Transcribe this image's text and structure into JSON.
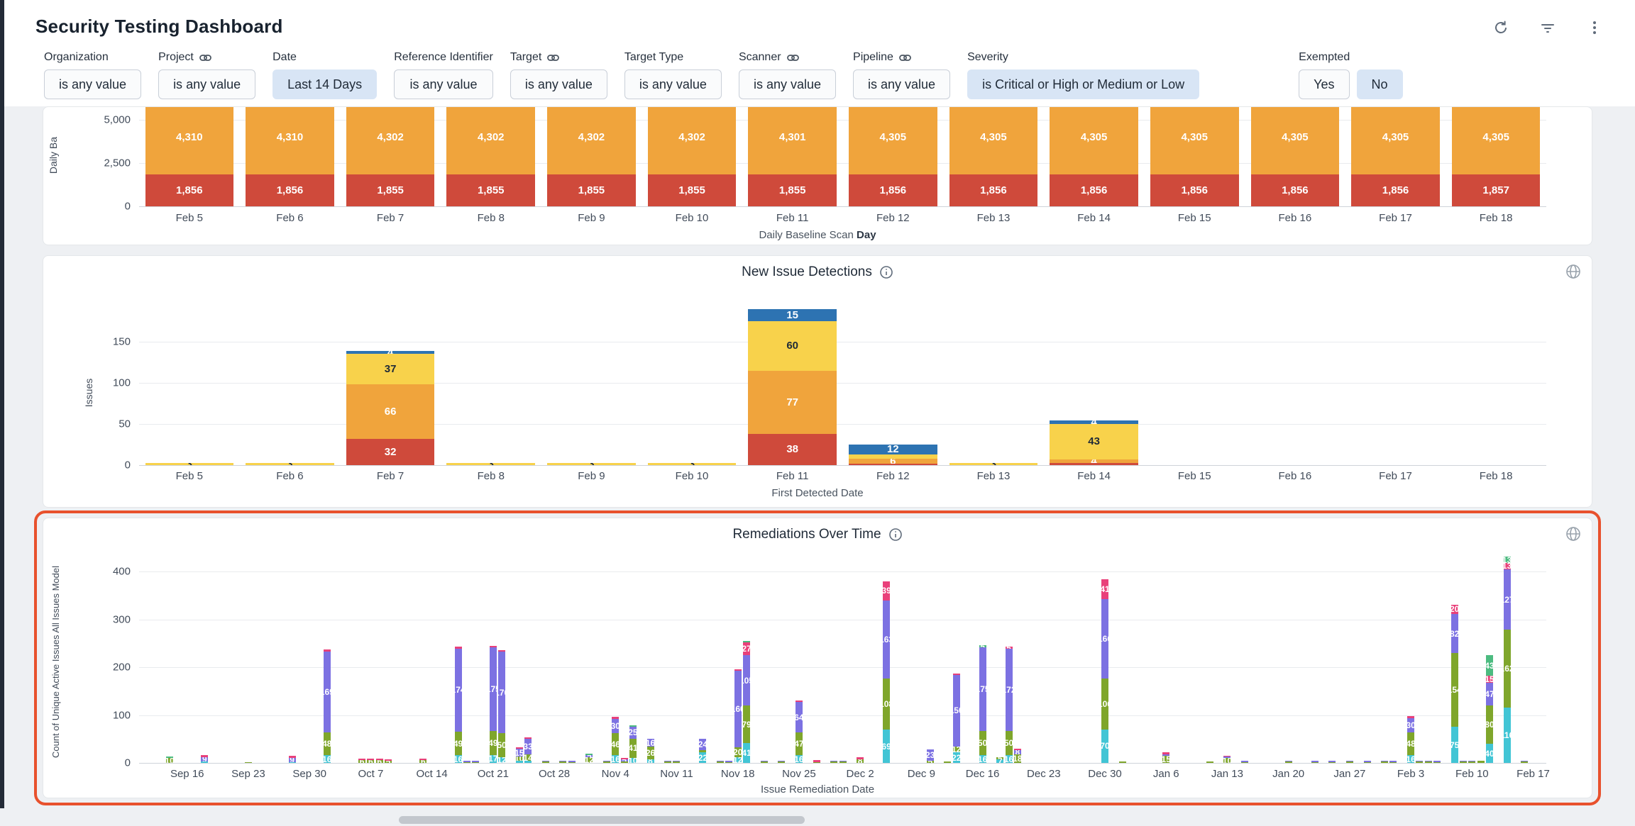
{
  "header": {
    "title": "Security Testing Dashboard",
    "icons": [
      "refresh-icon",
      "filter-icon",
      "kebab-menu-icon"
    ]
  },
  "filters": [
    {
      "label": "Organization",
      "link": false,
      "value": "is any value",
      "active": false
    },
    {
      "label": "Project",
      "link": true,
      "value": "is any value",
      "active": false
    },
    {
      "label": "Date",
      "link": false,
      "value": "Last 14 Days",
      "active": true
    },
    {
      "label": "Reference Identifier",
      "link": false,
      "value": "is any value",
      "active": false
    },
    {
      "label": "Target",
      "link": true,
      "value": "is any value",
      "active": false
    },
    {
      "label": "Target Type",
      "link": false,
      "value": "is any value",
      "active": false
    },
    {
      "label": "Scanner",
      "link": true,
      "value": "is any value",
      "active": false
    },
    {
      "label": "Pipeline",
      "link": true,
      "value": "is any value",
      "active": false
    },
    {
      "label": "Severity",
      "link": false,
      "value": "is Critical or High or Medium or Low",
      "active": true
    }
  ],
  "exempted": {
    "label": "Exempted",
    "options": [
      {
        "value": "Yes",
        "active": false
      },
      {
        "value": "No",
        "active": true
      }
    ]
  },
  "colors": {
    "red": "#cf4a3b",
    "orange": "#f0a43c",
    "yellow": "#f8d24b",
    "blue": "#2d73b2",
    "teal": "#42c5d5",
    "olive": "#7fa62b",
    "purple": "#7c71e2",
    "pink": "#e9407a",
    "emerald": "#4cbb80",
    "highlight": "#e8512d",
    "active_filter_bg": "#d8e5f5"
  },
  "chart_data": [
    {
      "type": "bar",
      "name": "daily-baseline-scan",
      "ylabel": "Daily Ba",
      "y_ticks": [
        "5,000",
        "2,500",
        "0"
      ],
      "categories": [
        "Feb 5",
        "Feb 6",
        "Feb 7",
        "Feb 8",
        "Feb 9",
        "Feb 10",
        "Feb 11",
        "Feb 12",
        "Feb 13",
        "Feb 14",
        "Feb 15",
        "Feb 16",
        "Feb 17",
        "Feb 18"
      ],
      "xlabel_prefix": "Daily Baseline Scan ",
      "xlabel_bold": "Day",
      "series": [
        {
          "name": "orange",
          "color": "orange",
          "values": [
            4310,
            4310,
            4302,
            4302,
            4302,
            4302,
            4301,
            4305,
            4305,
            4305,
            4305,
            4305,
            4305,
            4305
          ],
          "labels": [
            "4,310",
            "4,310",
            "4,302",
            "4,302",
            "4,302",
            "4,302",
            "4,301",
            "4,305",
            "4,305",
            "4,305",
            "4,305",
            "4,305",
            "4,305",
            "4,305"
          ]
        },
        {
          "name": "red",
          "color": "red",
          "values": [
            1856,
            1856,
            1855,
            1855,
            1855,
            1855,
            1855,
            1856,
            1856,
            1856,
            1856,
            1856,
            1856,
            1857
          ],
          "labels": [
            "1,856",
            "1,856",
            "1,855",
            "1,855",
            "1,855",
            "1,855",
            "1,855",
            "1,856",
            "1,856",
            "1,856",
            "1,856",
            "1,856",
            "1,856",
            "1,857"
          ]
        }
      ]
    },
    {
      "type": "bar",
      "name": "new-issue-detections",
      "title": "New Issue Detections",
      "ylabel": "Issues",
      "y_ticks": [
        "150",
        "100",
        "50",
        "0"
      ],
      "categories": [
        "Feb 5",
        "Feb 6",
        "Feb 7",
        "Feb 8",
        "Feb 9",
        "Feb 10",
        "Feb 11",
        "Feb 12",
        "Feb 13",
        "Feb 14",
        "Feb 15",
        "Feb 16",
        "Feb 17",
        "Feb 18"
      ],
      "xlabel": "First Detected Date",
      "series": [
        {
          "name": "critical",
          "color": "red",
          "values": [
            0,
            0,
            32,
            0,
            0,
            0,
            38,
            2,
            0,
            3,
            0,
            0,
            0,
            0
          ],
          "labels": [
            "",
            "",
            "32",
            "",
            "",
            "",
            "38",
            "",
            "",
            "",
            "",
            "",
            "",
            ""
          ]
        },
        {
          "name": "high",
          "color": "orange",
          "values": [
            0,
            0,
            66,
            0,
            0,
            0,
            77,
            6,
            0,
            4,
            0,
            0,
            0,
            0
          ],
          "labels": [
            "",
            "",
            "66",
            "",
            "",
            "",
            "77",
            "6",
            "",
            "4",
            "",
            "",
            "",
            ""
          ]
        },
        {
          "name": "medium",
          "color": "yellow",
          "values": [
            3,
            3,
            37,
            3,
            3,
            3,
            60,
            5,
            3,
            43,
            0,
            0,
            0,
            0
          ],
          "labels": [
            "3",
            "3",
            "37",
            "3",
            "3",
            "3",
            "60",
            "",
            "3",
            "43",
            "",
            "",
            "",
            ""
          ]
        },
        {
          "name": "low",
          "color": "blue",
          "values": [
            0,
            0,
            4,
            0,
            0,
            0,
            15,
            12,
            0,
            4,
            0,
            0,
            0,
            0
          ],
          "labels": [
            "",
            "",
            "4",
            "",
            "",
            "",
            "15",
            "12",
            "",
            "4",
            "",
            "",
            "",
            ""
          ]
        }
      ]
    },
    {
      "type": "bar",
      "name": "remediations-over-time",
      "title": "Remediations Over Time",
      "ylabel": "Count of Unique Active Issues All Issues Model",
      "y_ticks": [
        "400",
        "300",
        "200",
        "100",
        "0"
      ],
      "xlabel": "Issue Remediation Date",
      "x_tick_labels": [
        "Sep 16",
        "Sep 23",
        "Sep 30",
        "Oct 7",
        "Oct 14",
        "Oct 21",
        "Oct 28",
        "Nov 4",
        "Nov 11",
        "Nov 18",
        "Nov 25",
        "Dec 2",
        "Dec 9",
        "Dec 16",
        "Dec 23",
        "Dec 30",
        "Jan 6",
        "Jan 13",
        "Jan 20",
        "Jan 27",
        "Feb 3",
        "Feb 10",
        "Feb 17"
      ],
      "x_tick_days": [
        5,
        12,
        19,
        26,
        33,
        40,
        47,
        54,
        61,
        68,
        75,
        82,
        89,
        96,
        103,
        110,
        117,
        124,
        131,
        138,
        145,
        152,
        159
      ],
      "domain_days": 161,
      "stack_order": [
        "teal",
        "olive",
        "purple",
        "pink",
        "emerald"
      ],
      "bars": [
        {
          "d": 3,
          "s": [
            0,
            10,
            0,
            0,
            3
          ]
        },
        {
          "d": 7,
          "s": [
            3,
            0,
            9,
            4,
            0
          ]
        },
        {
          "d": 12,
          "s": [
            0,
            2,
            0,
            0,
            0
          ]
        },
        {
          "d": 17,
          "s": [
            2,
            0,
            9,
            4,
            0
          ]
        },
        {
          "d": 21,
          "s": [
            16,
            48,
            169,
            4,
            0
          ]
        },
        {
          "d": 25,
          "s": [
            0,
            6,
            0,
            3,
            0
          ]
        },
        {
          "d": 26,
          "s": [
            0,
            6,
            0,
            3,
            0
          ]
        },
        {
          "d": 27,
          "s": [
            0,
            6,
            0,
            3,
            0
          ]
        },
        {
          "d": 28,
          "s": [
            0,
            5,
            0,
            3,
            0
          ]
        },
        {
          "d": 32,
          "s": [
            0,
            6,
            0,
            3,
            0
          ]
        },
        {
          "d": 36,
          "s": [
            16,
            49,
            174,
            4,
            0
          ]
        },
        {
          "d": 37,
          "s": [
            0,
            2,
            3,
            0,
            0
          ]
        },
        {
          "d": 38,
          "s": [
            0,
            2,
            3,
            0,
            0
          ]
        },
        {
          "d": 40,
          "s": [
            17,
            49,
            175,
            3,
            0
          ]
        },
        {
          "d": 41,
          "s": [
            12,
            50,
            170,
            3,
            0
          ]
        },
        {
          "d": 43,
          "s": [
            4,
            10,
            15,
            3,
            0
          ]
        },
        {
          "d": 44,
          "s": [
            4,
            14,
            33,
            3,
            0
          ]
        },
        {
          "d": 46,
          "s": [
            0,
            3,
            2,
            0,
            0
          ]
        },
        {
          "d": 48,
          "s": [
            0,
            3,
            2,
            0,
            0
          ]
        },
        {
          "d": 49,
          "s": [
            0,
            2,
            3,
            0,
            0
          ]
        },
        {
          "d": 51,
          "s": [
            0,
            12,
            5,
            0,
            3
          ]
        },
        {
          "d": 53,
          "s": [
            0,
            3,
            2,
            0,
            0
          ]
        },
        {
          "d": 54,
          "s": [
            16,
            46,
            30,
            4,
            0
          ]
        },
        {
          "d": 55,
          "s": [
            0,
            3,
            5,
            2,
            0
          ]
        },
        {
          "d": 56,
          "s": [
            10,
            41,
            25,
            0,
            3
          ]
        },
        {
          "d": 58,
          "s": [
            8,
            26,
            16,
            0,
            0
          ]
        },
        {
          "d": 60,
          "s": [
            0,
            3,
            2,
            0,
            0
          ]
        },
        {
          "d": 61,
          "s": [
            0,
            3,
            2,
            0,
            0
          ]
        },
        {
          "d": 64,
          "s": [
            22,
            4,
            24,
            0,
            0
          ]
        },
        {
          "d": 66,
          "s": [
            0,
            3,
            2,
            0,
            0
          ]
        },
        {
          "d": 67,
          "s": [
            0,
            2,
            3,
            0,
            0
          ]
        },
        {
          "d": 68,
          "s": [
            12,
            20,
            160,
            4,
            0
          ]
        },
        {
          "d": 69,
          "s": [
            41,
            79,
            105,
            27,
            3
          ]
        },
        {
          "d": 71,
          "s": [
            0,
            3,
            2,
            0,
            0
          ]
        },
        {
          "d": 73,
          "s": [
            0,
            3,
            2,
            0,
            0
          ]
        },
        {
          "d": 75,
          "s": [
            16,
            47,
            64,
            4,
            0
          ]
        },
        {
          "d": 77,
          "s": [
            0,
            2,
            0,
            4,
            0
          ]
        },
        {
          "d": 79,
          "s": [
            0,
            3,
            2,
            0,
            0
          ]
        },
        {
          "d": 80,
          "s": [
            0,
            3,
            2,
            0,
            0
          ]
        },
        {
          "d": 82,
          "s": [
            0,
            8,
            0,
            4,
            0
          ]
        },
        {
          "d": 85,
          "s": [
            69,
            108,
            163,
            39,
            0
          ]
        },
        {
          "d": 90,
          "s": [
            0,
            5,
            23,
            0,
            0
          ]
        },
        {
          "d": 92,
          "s": [
            0,
            3,
            0,
            0,
            0
          ]
        },
        {
          "d": 93,
          "s": [
            22,
            12,
            150,
            2,
            0
          ]
        },
        {
          "d": 96,
          "s": [
            16,
            50,
            175,
            0,
            5
          ]
        },
        {
          "d": 98,
          "s": [
            7,
            5,
            0,
            0,
            0
          ]
        },
        {
          "d": 99,
          "s": [
            16,
            50,
            172,
            5,
            0
          ]
        },
        {
          "d": 100,
          "s": [
            0,
            18,
            8,
            4,
            0
          ]
        },
        {
          "d": 110,
          "s": [
            70,
            106,
            166,
            41,
            0
          ]
        },
        {
          "d": 112,
          "s": [
            0,
            3,
            0,
            0,
            0
          ]
        },
        {
          "d": 117,
          "s": [
            0,
            15,
            3,
            4,
            0
          ]
        },
        {
          "d": 122,
          "s": [
            0,
            3,
            0,
            0,
            0
          ]
        },
        {
          "d": 124,
          "s": [
            0,
            10,
            3,
            2,
            0
          ]
        },
        {
          "d": 126,
          "s": [
            0,
            2,
            2,
            0,
            0
          ]
        },
        {
          "d": 131,
          "s": [
            0,
            3,
            2,
            0,
            0
          ]
        },
        {
          "d": 134,
          "s": [
            0,
            2,
            2,
            0,
            0
          ]
        },
        {
          "d": 136,
          "s": [
            0,
            2,
            2,
            0,
            0
          ]
        },
        {
          "d": 138,
          "s": [
            0,
            3,
            2,
            0,
            0
          ]
        },
        {
          "d": 140,
          "s": [
            0,
            2,
            2,
            0,
            0
          ]
        },
        {
          "d": 142,
          "s": [
            0,
            3,
            2,
            0,
            0
          ]
        },
        {
          "d": 143,
          "s": [
            0,
            2,
            2,
            0,
            0
          ]
        },
        {
          "d": 145,
          "s": [
            16,
            48,
            30,
            4,
            0
          ]
        },
        {
          "d": 146,
          "s": [
            0,
            3,
            2,
            0,
            0
          ]
        },
        {
          "d": 147,
          "s": [
            0,
            3,
            2,
            0,
            0
          ]
        },
        {
          "d": 148,
          "s": [
            0,
            2,
            2,
            0,
            0
          ]
        },
        {
          "d": 150,
          "s": [
            75,
            154,
            82,
            20,
            0
          ]
        },
        {
          "d": 151,
          "s": [
            0,
            3,
            2,
            0,
            0
          ]
        },
        {
          "d": 152,
          "s": [
            0,
            3,
            2,
            0,
            0
          ]
        },
        {
          "d": 153,
          "s": [
            0,
            4,
            0,
            0,
            0
          ]
        },
        {
          "d": 154,
          "s": [
            40,
            80,
            47,
            15,
            43
          ]
        },
        {
          "d": 156,
          "s": [
            116,
            162,
            127,
            13,
            13
          ]
        },
        {
          "d": 158,
          "s": [
            0,
            3,
            2,
            0,
            0
          ]
        }
      ]
    }
  ]
}
